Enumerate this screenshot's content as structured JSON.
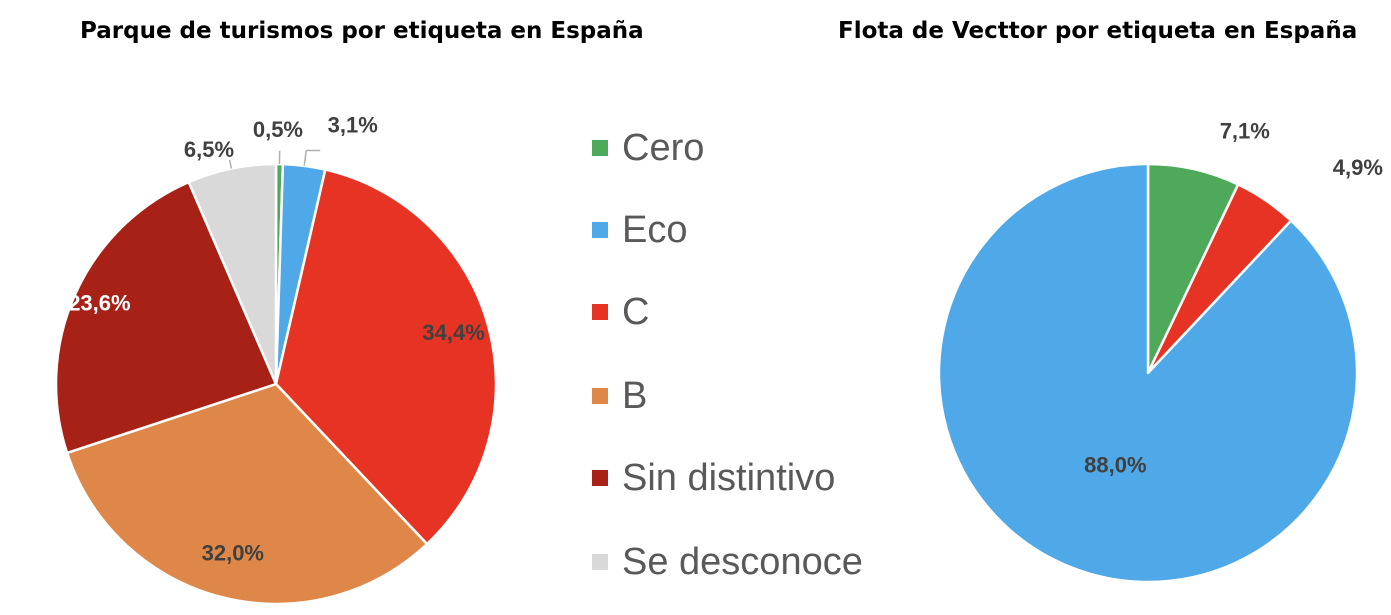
{
  "chart_data": [
    {
      "type": "pie",
      "title": "Parque de turismos por etiqueta en España",
      "series": [
        {
          "name": "Cero",
          "value": 0.5,
          "label": "0,5%",
          "color": "#4eaa5a"
        },
        {
          "name": "Eco",
          "value": 3.1,
          "label": "3,1%",
          "color": "#4fa9e8"
        },
        {
          "name": "C",
          "value": 34.4,
          "label": "34,4%",
          "color": "#e73324"
        },
        {
          "name": "B",
          "value": 32.0,
          "label": "32,0%",
          "color": "#de8748"
        },
        {
          "name": "Sin distintivo",
          "value": 23.6,
          "label": "23,6%",
          "color": "#a82117"
        },
        {
          "name": "Se desconoce",
          "value": 6.5,
          "label": "6,5%",
          "color": "#d9d9d9"
        }
      ],
      "legend": "right"
    },
    {
      "type": "pie",
      "title": "Flota de Vecttor por etiqueta en España",
      "series": [
        {
          "name": "Cero",
          "value": 7.1,
          "label": "7,1%",
          "color": "#4eaa5a"
        },
        {
          "name": "C",
          "value": 4.9,
          "label": "4,9%",
          "color": "#e73324"
        },
        {
          "name": "Eco",
          "value": 88.0,
          "label": "88,0%",
          "color": "#4fa9e8"
        }
      ]
    }
  ],
  "legend": {
    "items": [
      {
        "label": "Cero",
        "color": "#4eaa5a"
      },
      {
        "label": "Eco",
        "color": "#4fa9e8"
      },
      {
        "label": "C",
        "color": "#e73324"
      },
      {
        "label": "B",
        "color": "#de8748"
      },
      {
        "label": "Sin distintivo",
        "color": "#a82117"
      },
      {
        "label": "Se desconoce",
        "color": "#d9d9d9"
      }
    ]
  }
}
